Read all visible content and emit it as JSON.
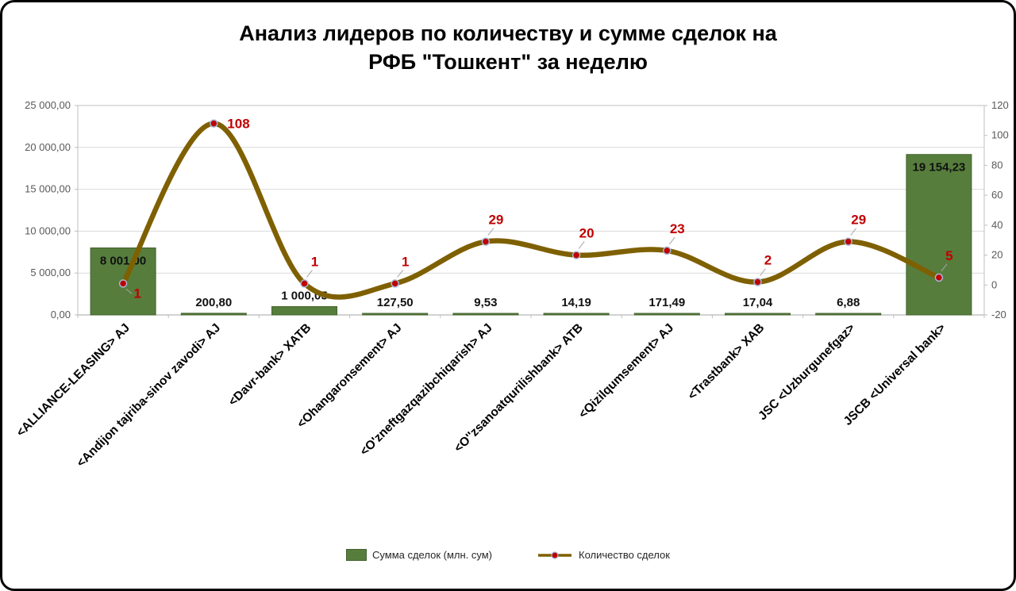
{
  "page": {
    "title_line1": "Анализ лидеров по количеству и сумме сделок на",
    "title_line2": "РФБ \"Тошкент\" за неделю"
  },
  "legend": {
    "bars_label": "Сумма сделок (млн. сум)",
    "line_label": "Количество сделок"
  },
  "colors": {
    "bar_fill": "#567d3c",
    "bar_border": "#44622e",
    "line": "#7f6000",
    "marker_fill": "#c00000",
    "marker_stroke": "#a3b8da",
    "line_label": "#c00000",
    "bar_label": "#111111",
    "axis_text": "#595959",
    "gridline": "#d9d9d9",
    "plot_border": "#bfbfbf",
    "axis_line": "#a6a6a6",
    "leader_line": "#a6a6a6",
    "x_label": "#000000"
  },
  "chart_data": {
    "type": "bar+line combo",
    "title": "Анализ лидеров по количеству и сумме сделок на РФБ \"Тошкент\" за неделю",
    "grid": true,
    "smooth_line": true,
    "legend_position": "bottom",
    "categories": [
      "<ALLIANCE-LEASING> AJ",
      "<Andijon tajriba-sinov zavodi> AJ",
      "<Davr-bank> XATB",
      "<Ohangaronsement> AJ",
      "<O'zneftgazqazibchiqarish> AJ",
      "<O''zsanoatqurilishbank> ATB",
      "<Qizilqumsement> AJ",
      "<Trastbank> XAB",
      "JSC <Uzburgunefgaz>",
      "JSCB <Universal bank>"
    ],
    "series": [
      {
        "name": "Сумма сделок (млн. сум)",
        "type": "bar",
        "axis": "left",
        "values": [
          8001.0,
          200.8,
          1000.05,
          127.5,
          9.53,
          14.19,
          171.49,
          17.04,
          6.88,
          19154.23
        ],
        "labels": [
          "8 001,00",
          "200,80",
          "1 000,05",
          "127,50",
          "9,53",
          "14,19",
          "171,49",
          "17,04",
          "6,88",
          "19 154,23"
        ],
        "label_placement": [
          "inside-top",
          "above",
          "above",
          "above",
          "above",
          "above",
          "above",
          "above",
          "above",
          "inside-top"
        ]
      },
      {
        "name": "Количество сделок",
        "type": "line",
        "axis": "right",
        "values": [
          1,
          108,
          1,
          1,
          29,
          20,
          23,
          2,
          29,
          5
        ],
        "labels": [
          "1",
          "108",
          "1",
          "1",
          "29",
          "20",
          "23",
          "2",
          "29",
          "5"
        ],
        "label_placement": [
          "below-right",
          "right",
          "above",
          "above",
          "above",
          "above",
          "above",
          "above",
          "above",
          "above"
        ]
      }
    ],
    "left_axis": {
      "min": 0,
      "max": 25000,
      "step": 5000,
      "tick_labels": [
        "0,00",
        "5 000,00",
        "10 000,00",
        "15 000,00",
        "20 000,00",
        "25 000,00"
      ]
    },
    "right_axis": {
      "min": -20,
      "max": 120,
      "step": 20,
      "tick_labels": [
        "-20",
        "0",
        "20",
        "40",
        "60",
        "80",
        "100",
        "120"
      ]
    }
  }
}
